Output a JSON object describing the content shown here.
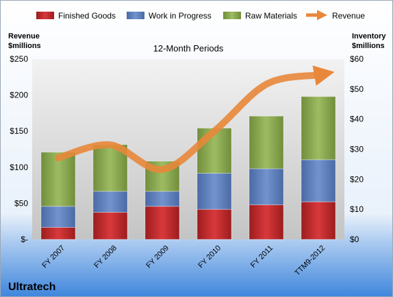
{
  "company": "Ultratech",
  "chart_data": {
    "type": "bar",
    "subtitle": "12-Month Periods",
    "categories": [
      "FY 2007",
      "FY 2008",
      "FY 2009",
      "FY 2010",
      "FY 2011",
      "TTM9-2012"
    ],
    "left_axis": {
      "label_line1": "Revenue",
      "label_line2": "$millions",
      "ylim": [
        0,
        250
      ],
      "ticks": [
        0,
        50,
        100,
        150,
        200,
        250
      ],
      "tick_labels": [
        "$-",
        "$50",
        "$100",
        "$150",
        "$200",
        "$250"
      ]
    },
    "right_axis": {
      "label_line1": "Inventory",
      "label_line2": "$millions",
      "ylim": [
        0,
        60
      ],
      "ticks": [
        0,
        10,
        20,
        30,
        40,
        50,
        60
      ],
      "tick_labels": [
        "$0",
        "$10",
        "$20",
        "$30",
        "$40",
        "$50",
        "$60"
      ]
    },
    "stacked": true,
    "series": [
      {
        "name": "Finished Goods",
        "kind": "bar",
        "axis": "right",
        "color": "#c0292b",
        "values": [
          4,
          9,
          11,
          10,
          11.5,
          12.5
        ]
      },
      {
        "name": "Work in Progress",
        "kind": "bar",
        "axis": "right",
        "color": "#5b7fbf",
        "values": [
          7,
          7,
          5,
          12,
          12,
          14
        ]
      },
      {
        "name": "Raw Materials",
        "kind": "bar",
        "axis": "right",
        "color": "#8aa94f",
        "values": [
          18,
          15.5,
          10,
          15,
          17.5,
          21
        ]
      },
      {
        "name": "Revenue",
        "kind": "line",
        "axis": "left",
        "color": "#e8873a",
        "values": [
          113,
          131,
          97,
          150,
          215,
          228
        ]
      }
    ],
    "legend_position": "top",
    "grid": false
  }
}
